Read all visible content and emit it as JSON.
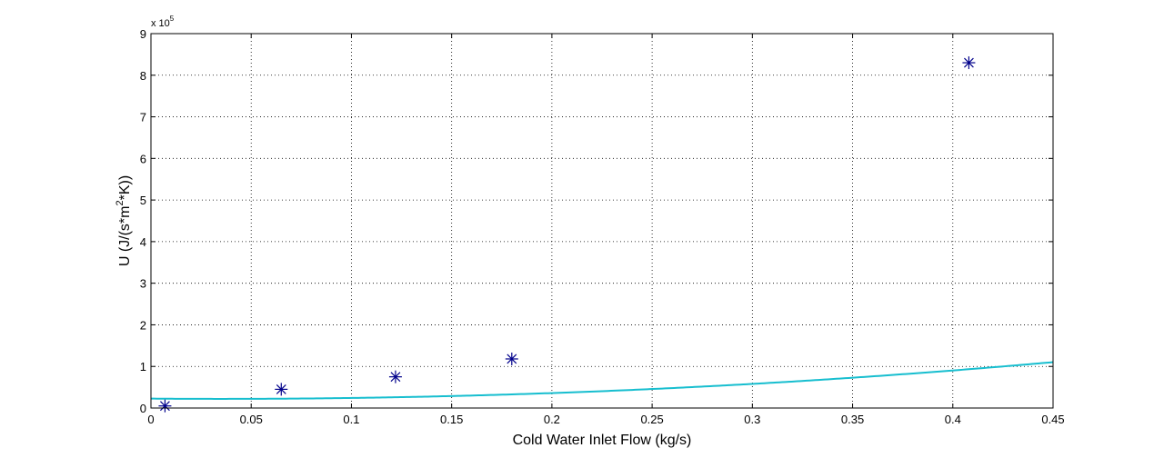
{
  "chart_data": {
    "type": "scatter",
    "title": "",
    "xlabel": "Cold Water Inlet Flow (kg/s)",
    "ylabel_parts": {
      "base": "U (J/(s*m",
      "sup": "2",
      "tail": "*K))"
    },
    "y_multiplier": {
      "base": "x 10",
      "exp": "5"
    },
    "xlim": [
      0,
      0.45
    ],
    "ylim": [
      0,
      9
    ],
    "x_ticks": [
      0,
      0.05,
      0.1,
      0.15,
      0.2,
      0.25,
      0.3,
      0.35,
      0.4,
      0.45
    ],
    "x_tick_labels": [
      "0",
      "0.05",
      "0.1",
      "0.15",
      "0.2",
      "0.25",
      "0.3",
      "0.35",
      "0.4",
      "0.45"
    ],
    "y_ticks": [
      0,
      1,
      2,
      3,
      4,
      5,
      6,
      7,
      8,
      9
    ],
    "y_tick_labels": [
      "0",
      "1",
      "2",
      "3",
      "4",
      "5",
      "6",
      "7",
      "8",
      "9"
    ],
    "grid": true,
    "series": [
      {
        "kind": "markers",
        "marker": "asterisk",
        "color": "#00008B",
        "x": [
          0.007,
          0.065,
          0.122,
          0.18,
          0.408
        ],
        "y": [
          0.05,
          0.45,
          0.75,
          1.18,
          8.3
        ]
      },
      {
        "kind": "curve",
        "color": "#17BECF",
        "fit": "quadratic",
        "coefficients": {
          "a": 5.12,
          "b": -0.356,
          "c": 0.226
        },
        "x_range": [
          0,
          0.45
        ]
      }
    ]
  }
}
